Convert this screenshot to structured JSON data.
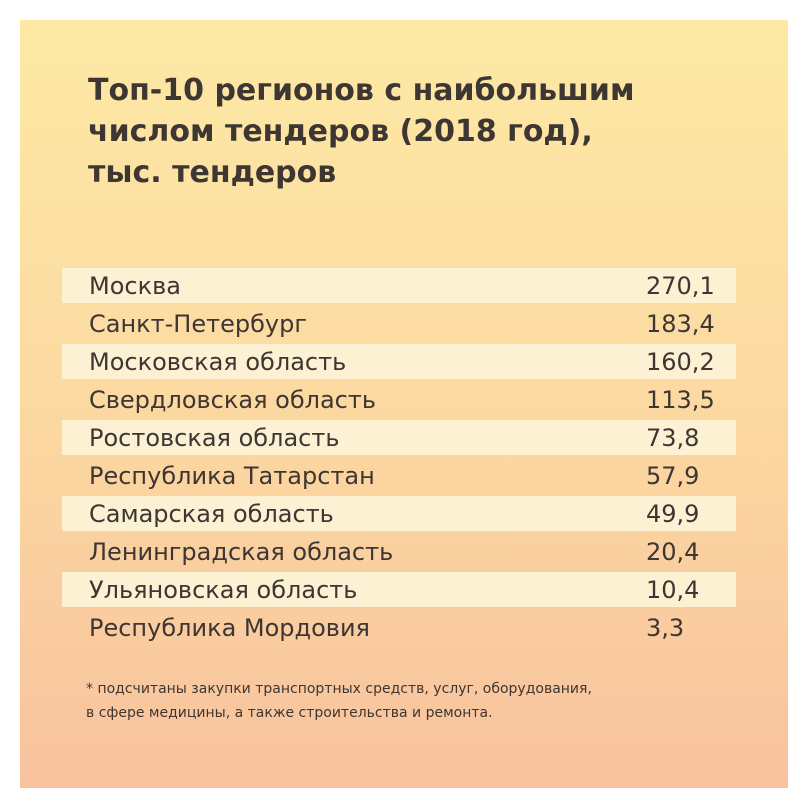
{
  "chart_data": {
    "type": "table",
    "title_lines": [
      "Топ-10 регионов с наибольшим",
      "числом тендеров (2018 год),",
      "тыс. тендеров"
    ],
    "rows": [
      {
        "region": "Москва",
        "value": "270,1"
      },
      {
        "region": "Санкт-Петербург",
        "value": "183,4"
      },
      {
        "region": "Московская область",
        "value": "160,2"
      },
      {
        "region": "Свердловская область",
        "value": "113,5"
      },
      {
        "region": "Ростовская область",
        "value": "73,8"
      },
      {
        "region": "Республика Татарстан",
        "value": "57,9"
      },
      {
        "region": "Самарская область",
        "value": "49,9"
      },
      {
        "region": "Ленинградская область",
        "value": "20,4"
      },
      {
        "region": "Ульяновская область",
        "value": "10,4"
      },
      {
        "region": "Республика Мордовия",
        "value": "3,3"
      }
    ],
    "footnote_lines": [
      "* подсчитаны закупки транспортных средств, услуг, оборудования,",
      "в сфере медицины, а также строительства и ремонта."
    ]
  },
  "colors": {
    "gradient_top": "#fde9a4",
    "gradient_bottom": "#f8c29e",
    "row_shade": "#fdf1d4",
    "text": "#3d3632"
  }
}
